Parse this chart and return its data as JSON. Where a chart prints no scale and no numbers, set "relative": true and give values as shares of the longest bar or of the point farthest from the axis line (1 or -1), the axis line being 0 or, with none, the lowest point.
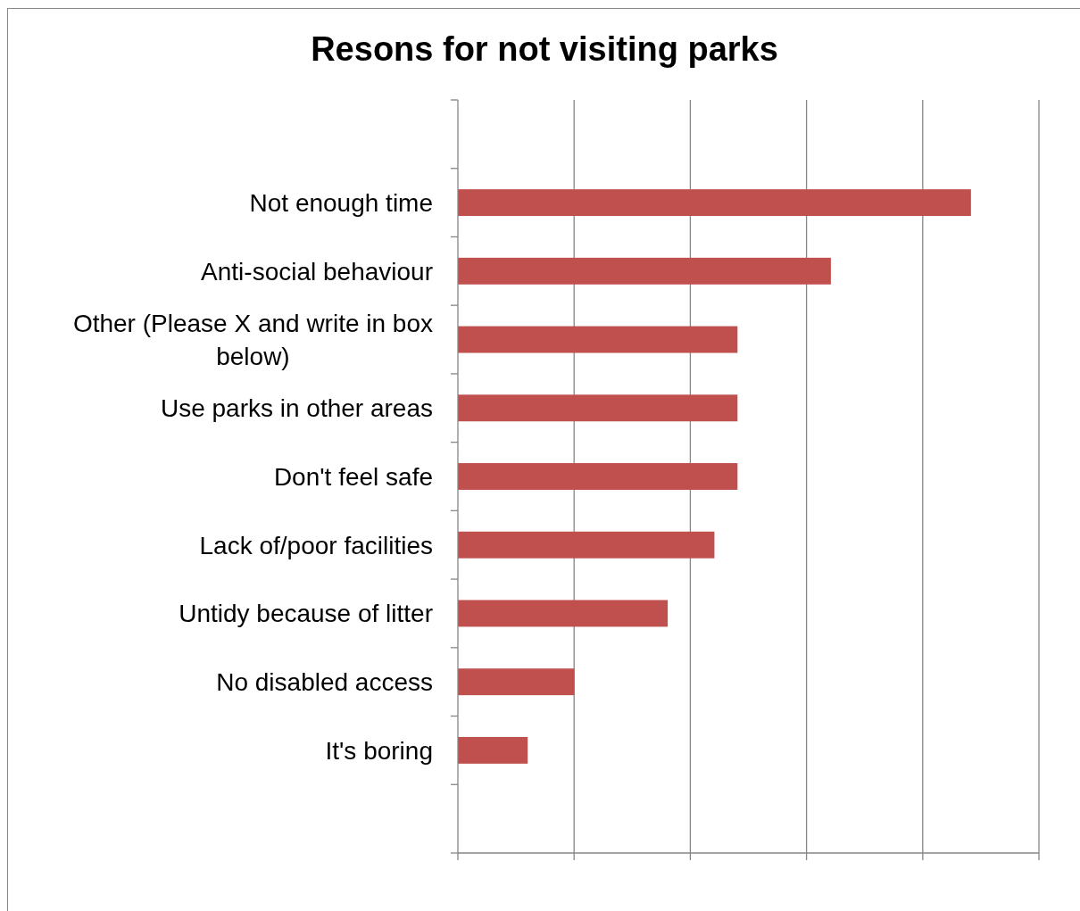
{
  "chart_data": {
    "type": "bar",
    "title": "Resons for not visiting parks",
    "orientation": "horizontal",
    "relative": true,
    "grid": "x",
    "color": "#c0504d",
    "categories": [
      null,
      "Not enough time",
      "Anti-social behaviour",
      "Other (Please X and write in box below)",
      "Use parks in other areas",
      "Don't feel safe",
      "Lack of/poor facilities",
      "Untidy because of litter",
      "No disabled access",
      "It's boring",
      null
    ],
    "values": [
      null,
      1,
      0.727,
      0.545,
      0.545,
      0.545,
      0.5,
      0.409,
      0.227,
      0.136,
      null
    ]
  }
}
